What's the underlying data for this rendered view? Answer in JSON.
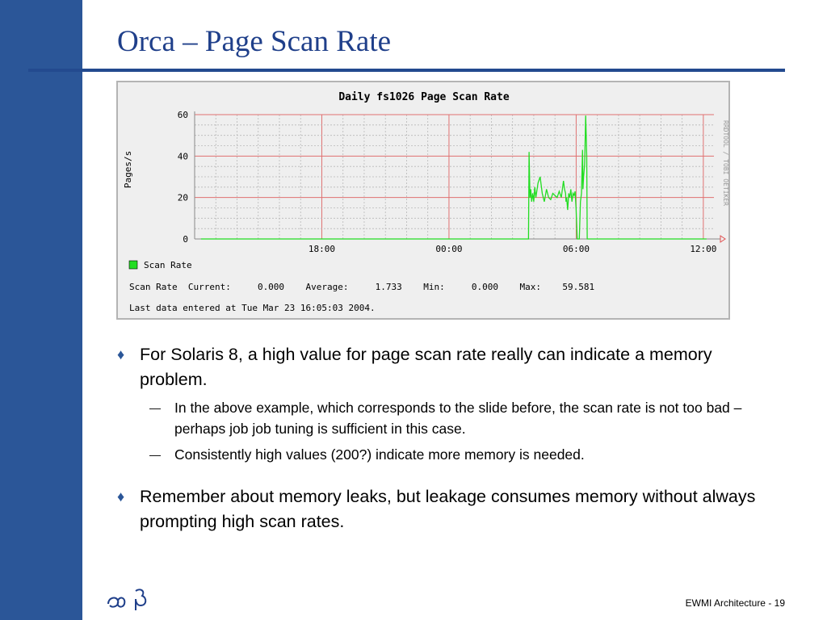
{
  "slide": {
    "title": "Orca – Page Scan Rate",
    "footer": "EWMI Architecture - 19",
    "logo_glyphs": "ab"
  },
  "colors": {
    "sidebar": "#2b5698",
    "title": "#1f3f8a",
    "series": "#22dd22",
    "grid_major": "#e07070",
    "grid_minor": "#b8b8b8",
    "axis_arrow": "#e05050"
  },
  "chart_data": {
    "type": "line",
    "title": "Daily fs1026 Page Scan Rate",
    "ylabel": "Pages/s",
    "ylim": [
      0,
      60
    ],
    "yticks": [
      "0",
      "20",
      "40",
      "60"
    ],
    "xticks": [
      "18:00",
      "00:00",
      "06:00",
      "12:00"
    ],
    "side_text": "RRDTOOL / TOBI OETIKER",
    "grid": true,
    "legend_position": "bottom-left",
    "series": [
      {
        "name": "Scan Rate",
        "x_hours": [
          12.3,
          12.8,
          13.3,
          13.8,
          14.3,
          14.8,
          15.3,
          15.8,
          16.3,
          16.8,
          17.3,
          17.8,
          18.3,
          18.8,
          19.3,
          19.8,
          20.3,
          20.8,
          21.3,
          21.8,
          22.3,
          22.8,
          23.3,
          23.8,
          24.3,
          24.8,
          25.3,
          25.8,
          26.3,
          26.8,
          27.3,
          27.75,
          27.78,
          27.82,
          27.86,
          27.9,
          27.95,
          28.0,
          28.05,
          28.1,
          28.2,
          28.3,
          28.4,
          28.5,
          28.6,
          28.7,
          28.8,
          28.9,
          29.0,
          29.1,
          29.2,
          29.3,
          29.4,
          29.45,
          29.5,
          29.52,
          29.55,
          29.6,
          29.65,
          29.7,
          29.75,
          29.8,
          29.85,
          29.9,
          29.95,
          30.0,
          30.05,
          30.1,
          30.15,
          30.2,
          30.25,
          30.3,
          30.32,
          30.35,
          30.4,
          30.45,
          30.5,
          30.52,
          30.55,
          30.6,
          31.0,
          32.0,
          33.0,
          34.0,
          35.0,
          36.0,
          36.15
        ],
        "values": [
          0,
          0,
          0,
          0,
          0,
          0,
          0,
          0,
          0,
          0,
          0,
          0,
          0,
          0,
          0,
          0,
          0,
          0,
          0,
          0,
          0,
          0,
          0,
          0,
          0,
          0,
          0,
          0,
          0,
          0,
          0,
          0,
          42,
          20,
          24,
          18,
          22,
          18,
          25,
          20,
          27,
          30,
          22,
          18,
          24,
          20,
          19,
          22,
          21,
          20,
          23,
          20,
          28,
          24,
          22,
          18,
          20,
          14,
          22,
          20,
          24,
          18,
          22,
          21,
          23,
          14,
          0,
          0,
          0,
          18,
          22,
          43,
          24,
          30,
          36,
          59.581,
          40,
          0,
          0,
          0,
          0,
          0,
          0,
          0,
          0,
          0,
          0
        ]
      }
    ],
    "legend": [
      {
        "label": "Scan Rate",
        "color": "#22dd22"
      }
    ],
    "stats_line": "Scan Rate  Current:     0.000    Average:     1.733    Min:     0.000    Max:    59.581",
    "footer_line": "Last data entered at Tue Mar 23 16:05:03 2004."
  },
  "bullets": [
    {
      "text": "For Solaris 8, a high value for page scan rate really can indicate a memory problem.",
      "sub": [
        "In the above example, which corresponds to the slide before, the scan rate is not too bad – perhaps job job tuning is sufficient in this case.",
        "Consistently high values (200?) indicate more memory is needed."
      ]
    },
    {
      "text": "Remember about memory leaks, but leakage consumes memory without always prompting high scan rates.",
      "sub": []
    }
  ]
}
